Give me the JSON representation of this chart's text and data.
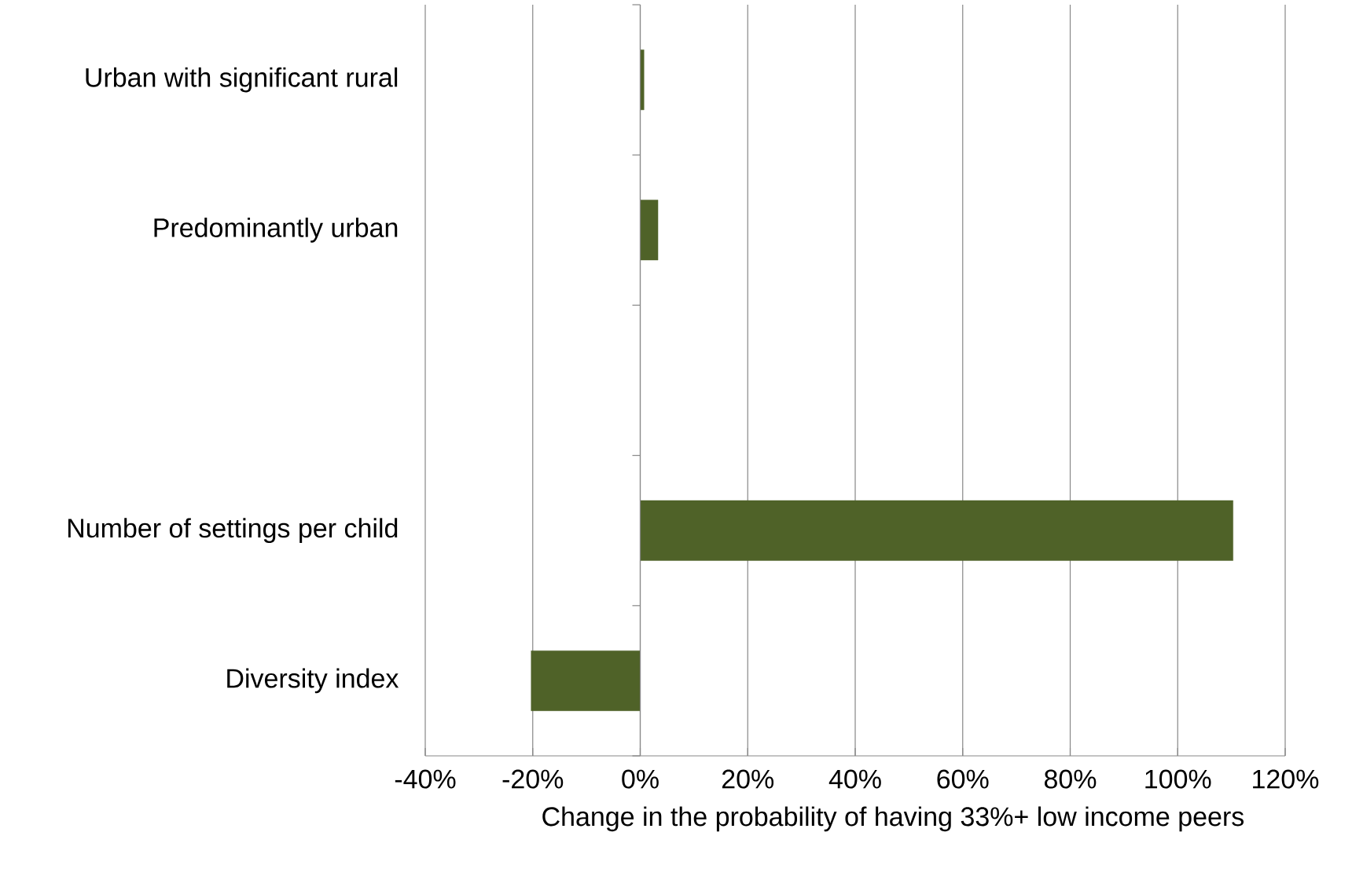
{
  "chart_data": {
    "type": "bar",
    "orientation": "horizontal",
    "categories": [
      "Urban with significant rural",
      "Predominantly urban",
      null,
      "Number of settings per child",
      "Diversity index"
    ],
    "values": [
      0.7,
      3.3,
      null,
      110.3,
      -20.3
    ],
    "color": "#4f6228",
    "xlabel": "Change in the probability of having 33%+ low income peers",
    "xlim": [
      -40,
      120
    ],
    "xticks": [
      {
        "value": -40,
        "label": "-40%"
      },
      {
        "value": -20,
        "label": "-20%"
      },
      {
        "value": 0,
        "label": "0%"
      },
      {
        "value": 20,
        "label": "20%"
      },
      {
        "value": 40,
        "label": "40%"
      },
      {
        "value": 60,
        "label": "60%"
      },
      {
        "value": 80,
        "label": "80%"
      },
      {
        "value": 100,
        "label": "100%"
      },
      {
        "value": 120,
        "label": "120%"
      }
    ],
    "grid": "x"
  }
}
